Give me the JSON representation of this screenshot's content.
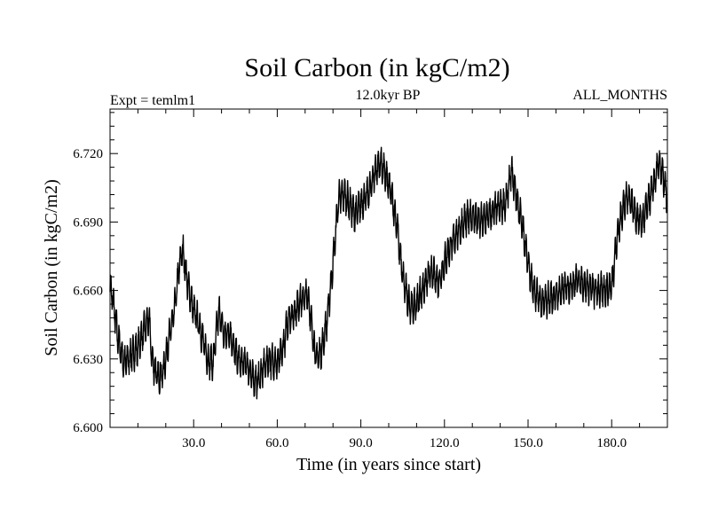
{
  "chart_data": {
    "type": "line",
    "title": "Soil Carbon (in kgC/m2)",
    "subtitle_left": "Expt = temlm1",
    "subtitle_center": "12.0kyr BP",
    "subtitle_right": "ALL_MONTHS",
    "xlabel": "Time (in years since start)",
    "ylabel": "Soil Carbon (in kgC/m2)",
    "xlim": [
      0,
      200
    ],
    "ylim": [
      6.6,
      6.7395
    ],
    "xticks": [
      30,
      60,
      90,
      120,
      150,
      180
    ],
    "xtick_labels": [
      "30.0",
      "60.0",
      "90.0",
      "120.0",
      "150.0",
      "180.0"
    ],
    "yticks": [
      6.6,
      6.63,
      6.66,
      6.69,
      6.72
    ],
    "ytick_labels": [
      "6.600",
      "6.630",
      "6.660",
      "6.690",
      "6.720"
    ],
    "line_color": "#000000",
    "seasonal_amplitude": 0.006,
    "samples_per_year": 12,
    "series": [
      {
        "name": "Soil Carbon",
        "envelope_x": [
          0,
          1,
          3,
          5,
          8,
          10,
          12,
          14,
          15,
          17,
          19,
          21,
          23,
          25,
          26,
          28,
          30,
          32,
          35,
          37,
          39,
          41,
          43,
          45,
          47,
          49,
          51,
          53,
          55,
          57,
          60,
          62,
          64,
          66,
          68,
          71,
          73,
          74,
          76,
          78,
          80,
          82,
          84,
          86,
          88,
          90,
          93,
          95,
          97,
          99,
          101,
          103,
          105,
          107,
          109,
          112,
          115,
          118,
          121,
          124,
          127,
          130,
          133,
          136,
          139,
          142,
          144,
          146,
          148,
          150,
          152,
          155,
          157,
          159,
          162,
          165,
          168,
          171,
          174,
          177,
          180,
          182,
          184,
          186,
          189,
          191,
          193,
          195,
          197,
          198,
          200
        ],
        "envelope_y": [
          6.662,
          6.656,
          6.638,
          6.628,
          6.632,
          6.635,
          6.642,
          6.648,
          6.63,
          6.622,
          6.624,
          6.638,
          6.65,
          6.672,
          6.678,
          6.662,
          6.651,
          6.645,
          6.63,
          6.628,
          6.651,
          6.64,
          6.642,
          6.632,
          6.628,
          6.628,
          6.622,
          6.62,
          6.626,
          6.63,
          6.628,
          6.634,
          6.648,
          6.65,
          6.655,
          6.658,
          6.638,
          6.63,
          6.634,
          6.648,
          6.672,
          6.7,
          6.702,
          6.698,
          6.693,
          6.698,
          6.703,
          6.712,
          6.716,
          6.71,
          6.702,
          6.688,
          6.666,
          6.655,
          6.652,
          6.66,
          6.668,
          6.664,
          6.676,
          6.684,
          6.69,
          6.693,
          6.69,
          6.693,
          6.696,
          6.698,
          6.712,
          6.7,
          6.688,
          6.672,
          6.66,
          6.654,
          6.656,
          6.657,
          6.66,
          6.662,
          6.665,
          6.662,
          6.66,
          6.66,
          6.662,
          6.684,
          6.696,
          6.702,
          6.692,
          6.69,
          6.698,
          6.706,
          6.716,
          6.712,
          6.7
        ]
      }
    ]
  }
}
